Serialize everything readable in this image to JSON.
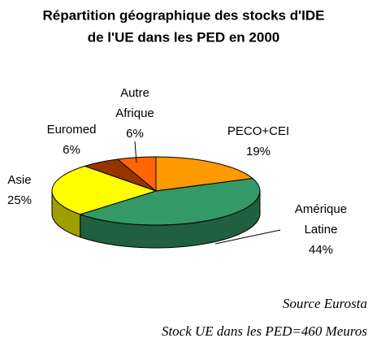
{
  "chart_data": {
    "type": "pie",
    "title": [
      "Répartition géographique des stocks d'IDE",
      "de l'UE dans les PED en 2000"
    ],
    "categories": [
      "PECO+CEI",
      "Amérique Latine",
      "Asie",
      "Euromed",
      "Autre Afrique"
    ],
    "values": [
      19,
      44,
      25,
      6,
      6
    ],
    "value_labels": [
      "19%",
      "44%",
      "25%",
      "6%",
      "6%"
    ],
    "colors": [
      "#ff9900",
      "#339966",
      "#ffff00",
      "#993300",
      "#ff6600"
    ],
    "notes": [
      "Source Eurosta",
      "Stock UE dans les PED=460 Meuros"
    ]
  }
}
